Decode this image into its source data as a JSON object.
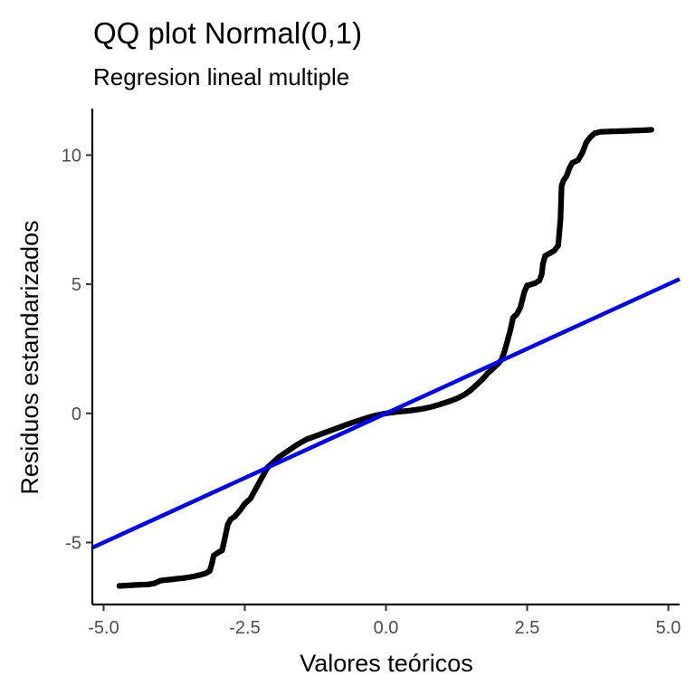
{
  "chart_data": {
    "type": "scatter",
    "title": "QQ plot Normal(0,1)",
    "subtitle": "Regresion lineal multiple",
    "xlabel": "Valores teóricos",
    "ylabel": "Residuos estandarizados",
    "xlim": [
      -5.2,
      5.2
    ],
    "ylim": [
      -7.4,
      11.8
    ],
    "x_ticks": [
      -5.0,
      -2.5,
      0.0,
      2.5,
      5.0
    ],
    "x_tick_labels": [
      "-5.0",
      "-2.5",
      "0.0",
      "2.5",
      "5.0"
    ],
    "y_ticks": [
      -5,
      0,
      5,
      10
    ],
    "y_tick_labels": [
      "-5",
      "0",
      "5",
      "10"
    ],
    "grid": false,
    "series": [
      {
        "color": "#000000",
        "points": [
          [
            -4.72,
            -6.68
          ],
          [
            -4.55,
            -6.66
          ],
          [
            -4.42,
            -6.64
          ],
          [
            -4.3,
            -6.63
          ],
          [
            -4.2,
            -6.62
          ],
          [
            -4.1,
            -6.58
          ],
          [
            -4.0,
            -6.48
          ],
          [
            -3.9,
            -6.45
          ],
          [
            -3.8,
            -6.43
          ],
          [
            -3.7,
            -6.4
          ],
          [
            -3.6,
            -6.38
          ],
          [
            -3.5,
            -6.35
          ],
          [
            -3.4,
            -6.31
          ],
          [
            -3.3,
            -6.26
          ],
          [
            -3.2,
            -6.2
          ],
          [
            -3.12,
            -6.1
          ],
          [
            -3.08,
            -5.8
          ],
          [
            -3.05,
            -5.5
          ],
          [
            -2.98,
            -5.4
          ],
          [
            -2.9,
            -5.3
          ],
          [
            -2.87,
            -5.0
          ],
          [
            -2.85,
            -4.8
          ],
          [
            -2.82,
            -4.5
          ],
          [
            -2.8,
            -4.3
          ],
          [
            -2.75,
            -4.1
          ],
          [
            -2.68,
            -4.0
          ],
          [
            -2.6,
            -3.8
          ],
          [
            -2.5,
            -3.5
          ],
          [
            -2.4,
            -3.3
          ],
          [
            -2.3,
            -2.9
          ],
          [
            -2.2,
            -2.5
          ],
          [
            -2.1,
            -2.1
          ],
          [
            -2.0,
            -1.9
          ],
          [
            -1.9,
            -1.7
          ],
          [
            -1.8,
            -1.55
          ],
          [
            -1.7,
            -1.4
          ],
          [
            -1.6,
            -1.25
          ],
          [
            -1.5,
            -1.12
          ],
          [
            -1.4,
            -1.0
          ],
          [
            -1.3,
            -0.92
          ],
          [
            -1.2,
            -0.84
          ],
          [
            -1.1,
            -0.76
          ],
          [
            -1.0,
            -0.68
          ],
          [
            -0.9,
            -0.6
          ],
          [
            -0.8,
            -0.52
          ],
          [
            -0.7,
            -0.44
          ],
          [
            -0.6,
            -0.36
          ],
          [
            -0.5,
            -0.29
          ],
          [
            -0.4,
            -0.22
          ],
          [
            -0.3,
            -0.15
          ],
          [
            -0.2,
            -0.09
          ],
          [
            -0.1,
            -0.04
          ],
          [
            0.0,
            0.0
          ],
          [
            0.1,
            0.03
          ],
          [
            0.2,
            0.06
          ],
          [
            0.3,
            0.08
          ],
          [
            0.4,
            0.1
          ],
          [
            0.5,
            0.13
          ],
          [
            0.6,
            0.16
          ],
          [
            0.7,
            0.2
          ],
          [
            0.8,
            0.25
          ],
          [
            0.9,
            0.31
          ],
          [
            1.0,
            0.38
          ],
          [
            1.1,
            0.45
          ],
          [
            1.2,
            0.53
          ],
          [
            1.3,
            0.62
          ],
          [
            1.4,
            0.74
          ],
          [
            1.5,
            0.9
          ],
          [
            1.6,
            1.1
          ],
          [
            1.7,
            1.3
          ],
          [
            1.8,
            1.55
          ],
          [
            1.9,
            1.75
          ],
          [
            2.0,
            1.95
          ],
          [
            2.05,
            2.1
          ],
          [
            2.1,
            2.4
          ],
          [
            2.15,
            2.8
          ],
          [
            2.2,
            3.2
          ],
          [
            2.25,
            3.7
          ],
          [
            2.32,
            3.85
          ],
          [
            2.38,
            4.1
          ],
          [
            2.45,
            4.7
          ],
          [
            2.5,
            4.95
          ],
          [
            2.58,
            5.0
          ],
          [
            2.65,
            5.05
          ],
          [
            2.72,
            5.15
          ],
          [
            2.76,
            5.4
          ],
          [
            2.78,
            5.8
          ],
          [
            2.82,
            6.1
          ],
          [
            2.9,
            6.2
          ],
          [
            2.98,
            6.3
          ],
          [
            3.05,
            6.5
          ],
          [
            3.09,
            7.5
          ],
          [
            3.11,
            8.8
          ],
          [
            3.14,
            9.0
          ],
          [
            3.2,
            9.2
          ],
          [
            3.25,
            9.5
          ],
          [
            3.3,
            9.7
          ],
          [
            3.4,
            9.8
          ],
          [
            3.48,
            10.1
          ],
          [
            3.55,
            10.5
          ],
          [
            3.62,
            10.7
          ],
          [
            3.7,
            10.85
          ],
          [
            3.8,
            10.9
          ],
          [
            4.0,
            10.92
          ],
          [
            4.2,
            10.93
          ],
          [
            4.4,
            10.95
          ],
          [
            4.55,
            10.96
          ],
          [
            4.7,
            10.98
          ]
        ]
      }
    ],
    "reference_line": {
      "color": "#0000ff",
      "intercept": 0,
      "slope": 1,
      "x": [
        -5.2,
        5.2
      ]
    }
  }
}
